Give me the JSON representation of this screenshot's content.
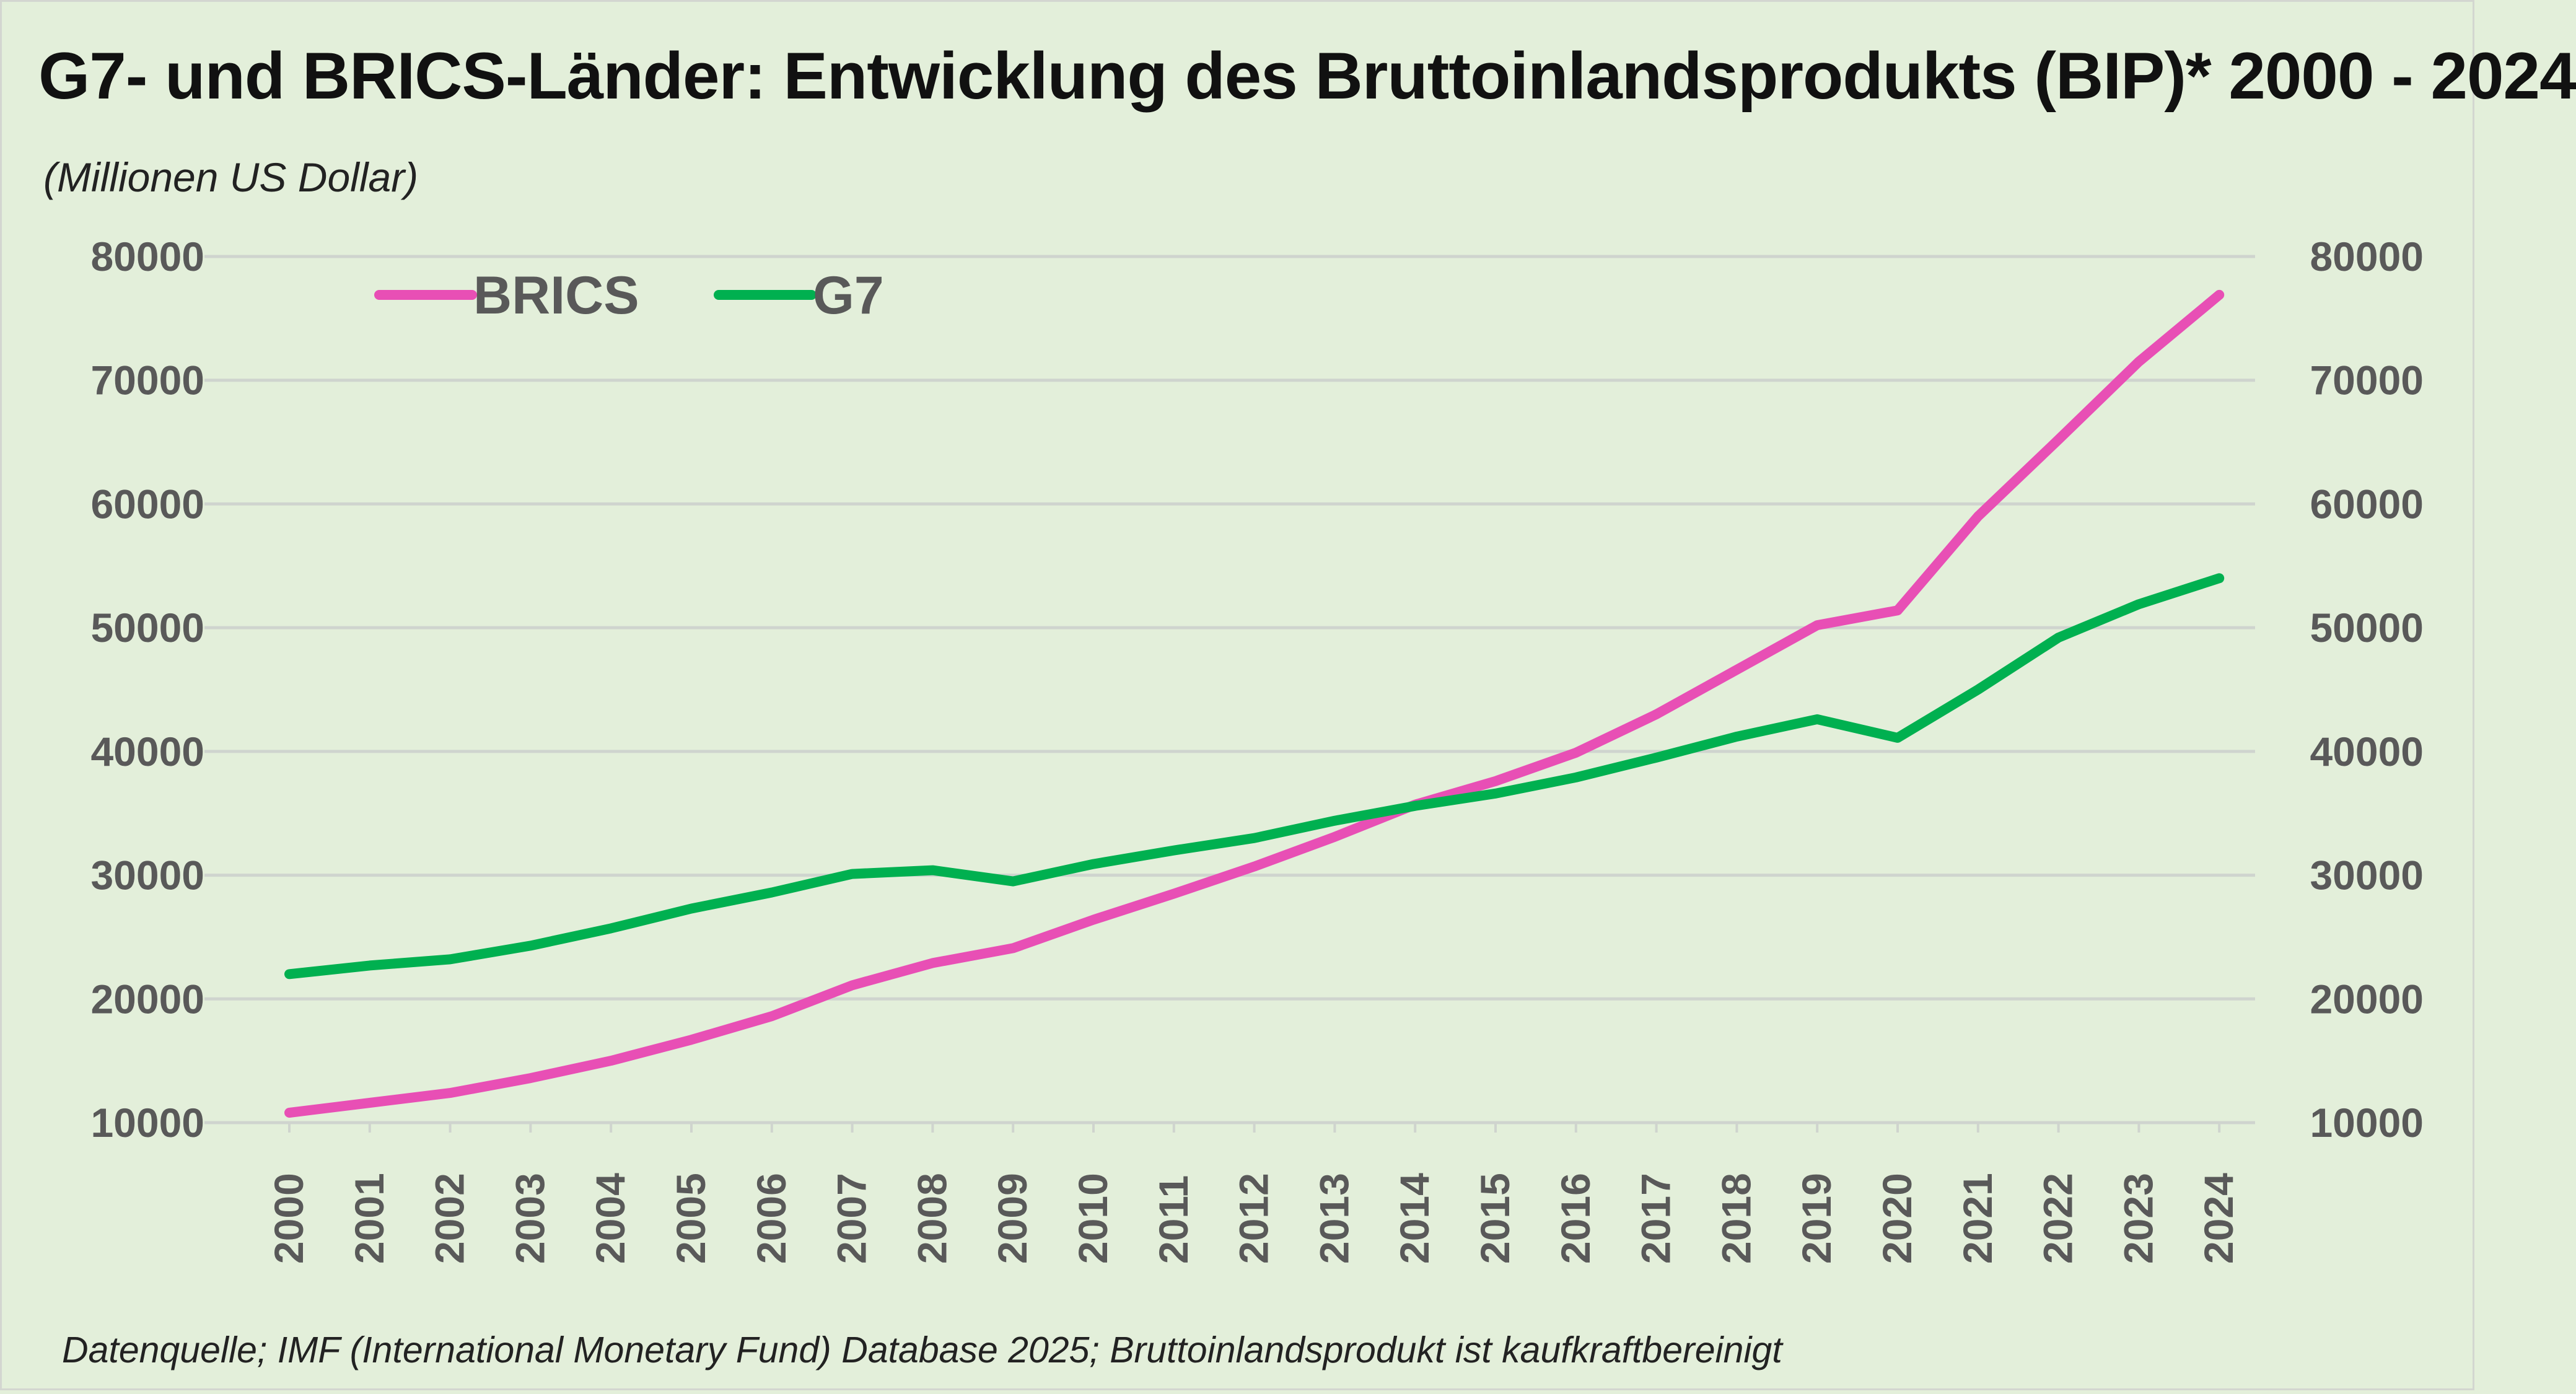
{
  "title": "G7- und BRICS-Länder: Entwicklung des Bruttoinlandsprodukts (BIP)* 2000 - 2024",
  "unit_label": "(Millionen US Dollar)",
  "source_note": "Datenquelle; IMF (International Monetary Fund) Database 2025; Bruttoinlandsprodukt ist kaufkraftbereinigt",
  "chart_data": {
    "type": "line",
    "title": "G7- und BRICS-Länder: Entwicklung des Bruttoinlandsprodukts (BIP)* 2000 - 2024",
    "ylabel": "(Millionen US Dollar)",
    "xlabel": "",
    "x": [
      "2000",
      "2001",
      "2002",
      "2003",
      "2004",
      "2005",
      "2006",
      "2007",
      "2008",
      "2009",
      "2010",
      "2011",
      "2012",
      "2013",
      "2014",
      "2015",
      "2016",
      "2017",
      "2018",
      "2019",
      "2020",
      "2021",
      "2022",
      "2023",
      "2024"
    ],
    "ylim": [
      10000,
      80000
    ],
    "yticks": [
      10000,
      20000,
      30000,
      40000,
      50000,
      60000,
      70000,
      80000
    ],
    "secondary_y_axis": true,
    "grid": "horizontal",
    "legend_position": "top-left",
    "series": [
      {
        "name": "BRICS",
        "color": "#e84fb5",
        "values": [
          10800,
          11600,
          12400,
          13600,
          15000,
          16700,
          18600,
          21100,
          22900,
          24100,
          26400,
          28500,
          30700,
          33100,
          35700,
          37600,
          39900,
          43000,
          46600,
          50200,
          51400,
          59000,
          65200,
          71500,
          76900
        ]
      },
      {
        "name": "G7",
        "color": "#00b050",
        "values": [
          22000,
          22700,
          23200,
          24300,
          25700,
          27300,
          28600,
          30100,
          30400,
          29500,
          30900,
          32000,
          33000,
          34400,
          35600,
          36600,
          37900,
          39500,
          41200,
          42600,
          41100,
          45000,
          49200,
          51900,
          54000
        ]
      }
    ]
  }
}
